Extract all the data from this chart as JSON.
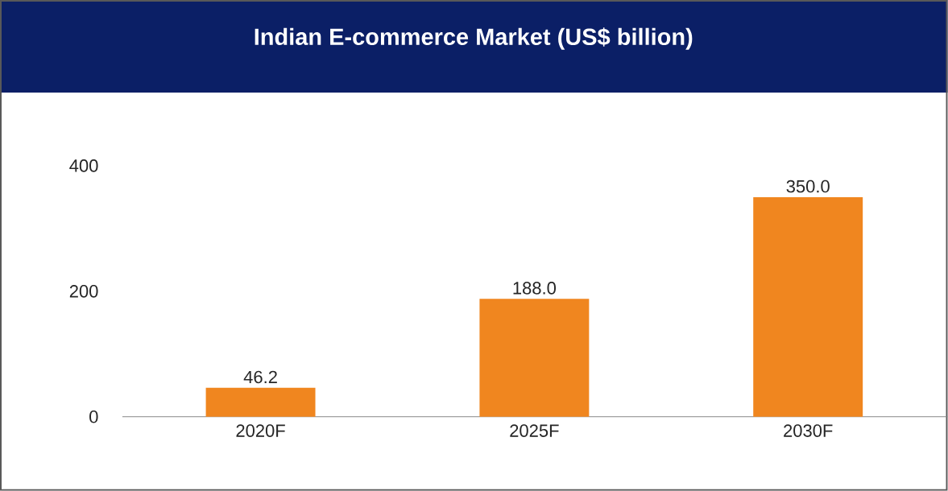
{
  "chart_data": {
    "type": "bar",
    "title": "Indian E-commerce Market (US$ billion)",
    "categories": [
      "2020F",
      "2025F",
      "2030F"
    ],
    "values": [
      46.2,
      188.0,
      350.0
    ],
    "color": "#f0861f",
    "value_labels": [
      "46.2",
      "188.0",
      "350.0"
    ],
    "ylim": [
      0,
      400
    ],
    "yticks": [
      0,
      200,
      400
    ]
  }
}
